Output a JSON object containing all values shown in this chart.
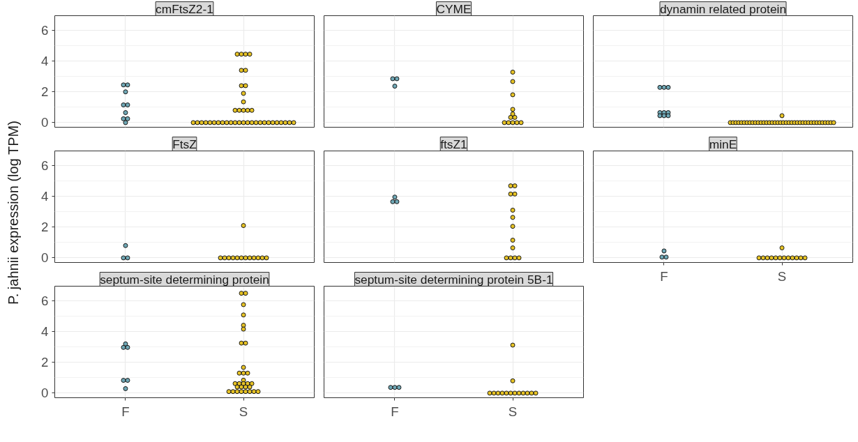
{
  "chart_data": [
    {
      "type": "scatter",
      "title": "cmFtsZ2-1",
      "ylabel": "P. jahnii expression (log TPM)",
      "categories": [
        "F",
        "S"
      ],
      "ylim": [
        -0.3,
        6.95
      ],
      "yticks": [
        0,
        2,
        4,
        6
      ],
      "grid": true,
      "marker": "circle",
      "tick_labels": "y",
      "series": [
        {
          "color": "#6fa8b6",
          "x": [
            "F",
            "F",
            "F",
            "F",
            "F",
            "F",
            "F",
            "F",
            "F"
          ],
          "values": [
            2.45,
            2.45,
            2.0,
            1.15,
            1.15,
            0.65,
            0.25,
            0.25,
            0.0
          ]
        },
        {
          "color": "#e6c224",
          "x": [
            "S",
            "S",
            "S",
            "S",
            "S",
            "S",
            "S",
            "S",
            "S",
            "S",
            "S",
            "S",
            "S",
            "S",
            "S",
            "S",
            "S",
            "S",
            "S",
            "S",
            "S",
            "S",
            "S",
            "S",
            "S",
            "S",
            "S",
            "S",
            "S",
            "S",
            "S",
            "S",
            "S",
            "S",
            "S",
            "S",
            "S",
            "S",
            "S",
            "S"
          ],
          "values": [
            4.45,
            4.45,
            4.45,
            4.45,
            3.4,
            3.4,
            2.4,
            2.4,
            1.9,
            1.35,
            0.8,
            0.8,
            0.8,
            0.8,
            0.8,
            0,
            0,
            0,
            0,
            0,
            0,
            0,
            0,
            0,
            0,
            0,
            0,
            0,
            0,
            0,
            0,
            0,
            0,
            0,
            0,
            0,
            0,
            0,
            0,
            0
          ]
        }
      ]
    },
    {
      "type": "scatter",
      "title": "CYME",
      "categories": [
        "F",
        "S"
      ],
      "ylim": [
        -0.3,
        6.95
      ],
      "yticks": [
        0,
        2,
        4,
        6
      ],
      "grid": true,
      "marker": "circle",
      "tick_labels": false,
      "series": [
        {
          "color": "#6fa8b6",
          "x": [
            "F",
            "F",
            "F"
          ],
          "values": [
            2.85,
            2.85,
            2.37
          ]
        },
        {
          "color": "#e6c224",
          "x": [
            "S",
            "S",
            "S",
            "S",
            "S",
            "S",
            "S",
            "S",
            "S",
            "S",
            "S",
            "S"
          ],
          "values": [
            3.28,
            2.67,
            1.81,
            0.86,
            0.56,
            0.34,
            0.34,
            0,
            0,
            0,
            0,
            0
          ]
        }
      ]
    },
    {
      "type": "scatter",
      "title": "dynamin related protein",
      "categories": [
        "F",
        "S"
      ],
      "ylim": [
        -0.3,
        6.95
      ],
      "yticks": [
        0,
        2,
        4,
        6
      ],
      "grid": true,
      "marker": "circle",
      "tick_labels": false,
      "series": [
        {
          "color": "#6fa8b6",
          "x": [
            "F",
            "F",
            "F",
            "F",
            "F",
            "F",
            "F",
            "F",
            "F"
          ],
          "values": [
            2.29,
            2.29,
            2.29,
            0.65,
            0.65,
            0.65,
            0.45,
            0.45,
            0.45
          ]
        },
        {
          "color": "#e6c224",
          "x": [
            "S",
            "S",
            "S",
            "S",
            "S",
            "S",
            "S",
            "S",
            "S",
            "S",
            "S",
            "S",
            "S",
            "S",
            "S",
            "S",
            "S",
            "S",
            "S",
            "S",
            "S",
            "S",
            "S",
            "S",
            "S",
            "S",
            "S",
            "S",
            "S",
            "S",
            "S",
            "S",
            "S",
            "S",
            "S",
            "S",
            "S",
            "S",
            "S"
          ],
          "values": [
            0.45,
            0,
            0,
            0,
            0,
            0,
            0,
            0,
            0,
            0,
            0,
            0,
            0,
            0,
            0,
            0,
            0,
            0,
            0,
            0,
            0,
            0,
            0,
            0,
            0,
            0,
            0,
            0,
            0,
            0,
            0,
            0,
            0,
            0,
            0,
            0,
            0,
            0,
            0
          ]
        }
      ]
    },
    {
      "type": "scatter",
      "title": "FtsZ",
      "categories": [
        "F",
        "S"
      ],
      "ylim": [
        -0.3,
        6.95
      ],
      "yticks": [
        0,
        2,
        4,
        6
      ],
      "grid": true,
      "marker": "circle",
      "tick_labels": "y",
      "series": [
        {
          "color": "#6fa8b6",
          "x": [
            "F",
            "F",
            "F"
          ],
          "values": [
            0.8,
            0,
            0
          ]
        },
        {
          "color": "#e6c224",
          "x": [
            "S",
            "S",
            "S",
            "S",
            "S",
            "S",
            "S",
            "S",
            "S",
            "S",
            "S",
            "S",
            "S"
          ],
          "values": [
            2.1,
            0,
            0,
            0,
            0,
            0,
            0,
            0,
            0,
            0,
            0,
            0,
            0
          ]
        }
      ]
    },
    {
      "type": "scatter",
      "title": "ftsZ1",
      "categories": [
        "F",
        "S"
      ],
      "ylim": [
        -0.3,
        6.95
      ],
      "yticks": [
        0,
        2,
        4,
        6
      ],
      "grid": true,
      "marker": "circle",
      "tick_labels": false,
      "series": [
        {
          "color": "#6fa8b6",
          "x": [
            "F",
            "F",
            "F"
          ],
          "values": [
            3.95,
            3.65,
            3.65
          ]
        },
        {
          "color": "#e6c224",
          "x": [
            "S",
            "S",
            "S",
            "S",
            "S",
            "S",
            "S",
            "S",
            "S",
            "S",
            "S",
            "S",
            "S"
          ],
          "values": [
            4.68,
            4.68,
            4.15,
            4.15,
            3.1,
            2.63,
            2.05,
            1.15,
            0.65,
            0,
            0,
            0,
            0
          ]
        }
      ]
    },
    {
      "type": "scatter",
      "title": "minE",
      "categories": [
        "F",
        "S"
      ],
      "ylim": [
        -0.3,
        6.95
      ],
      "yticks": [
        0,
        2,
        4,
        6
      ],
      "grid": true,
      "marker": "circle",
      "tick_labels": "x",
      "series": [
        {
          "color": "#6fa8b6",
          "x": [
            "F",
            "F",
            "F"
          ],
          "values": [
            0.45,
            0.05,
            0.05
          ]
        },
        {
          "color": "#e6c224",
          "x": [
            "S",
            "S",
            "S",
            "S",
            "S",
            "S",
            "S",
            "S",
            "S",
            "S",
            "S",
            "S",
            "S"
          ],
          "values": [
            0.65,
            0,
            0,
            0,
            0,
            0,
            0,
            0,
            0,
            0,
            0,
            0,
            0
          ]
        }
      ]
    },
    {
      "type": "scatter",
      "title": "septum-site determining protein",
      "categories": [
        "F",
        "S"
      ],
      "ylim": [
        -0.3,
        6.95
      ],
      "yticks": [
        0,
        2,
        4,
        6
      ],
      "grid": true,
      "marker": "circle",
      "series": [
        {
          "color": "#6fa8b6",
          "x": [
            "F",
            "F",
            "F",
            "F",
            "F",
            "F"
          ],
          "values": [
            3.2,
            2.97,
            2.97,
            0.83,
            0.83,
            0.29
          ]
        },
        {
          "color": "#e6c224",
          "x": [
            "S",
            "S",
            "S",
            "S",
            "S",
            "S",
            "S",
            "S",
            "S",
            "S",
            "S",
            "S",
            "S",
            "S",
            "S",
            "S",
            "S",
            "S",
            "S",
            "S",
            "S",
            "S",
            "S",
            "S",
            "S",
            "S",
            "S",
            "S",
            "S",
            "S"
          ],
          "values": [
            6.49,
            6.49,
            5.75,
            5.08,
            4.41,
            4.16,
            3.25,
            3.25,
            1.67,
            1.3,
            1.3,
            1.3,
            0.84,
            0.62,
            0.62,
            0.62,
            0.62,
            0.62,
            0.4,
            0.4,
            0.4,
            0.4,
            0.1,
            0.1,
            0.1,
            0.1,
            0.1,
            0.1,
            0.1,
            0.1
          ]
        }
      ]
    },
    {
      "type": "scatter",
      "title": "septum-site determining protein 5B-1",
      "categories": [
        "F",
        "S"
      ],
      "ylim": [
        -0.3,
        6.95
      ],
      "yticks": [
        0,
        2,
        4,
        6
      ],
      "grid": true,
      "marker": "circle",
      "tick_labels": "x",
      "series": [
        {
          "color": "#6fa8b6",
          "x": [
            "F",
            "F",
            "F"
          ],
          "values": [
            0.37,
            0.37,
            0.37
          ]
        },
        {
          "color": "#e6c224",
          "x": [
            "S",
            "S",
            "S",
            "S",
            "S",
            "S",
            "S",
            "S",
            "S",
            "S",
            "S",
            "S",
            "S",
            "S"
          ],
          "values": [
            3.12,
            0.8,
            0,
            0,
            0,
            0,
            0,
            0,
            0,
            0,
            0,
            0,
            0,
            0
          ]
        }
      ]
    }
  ]
}
